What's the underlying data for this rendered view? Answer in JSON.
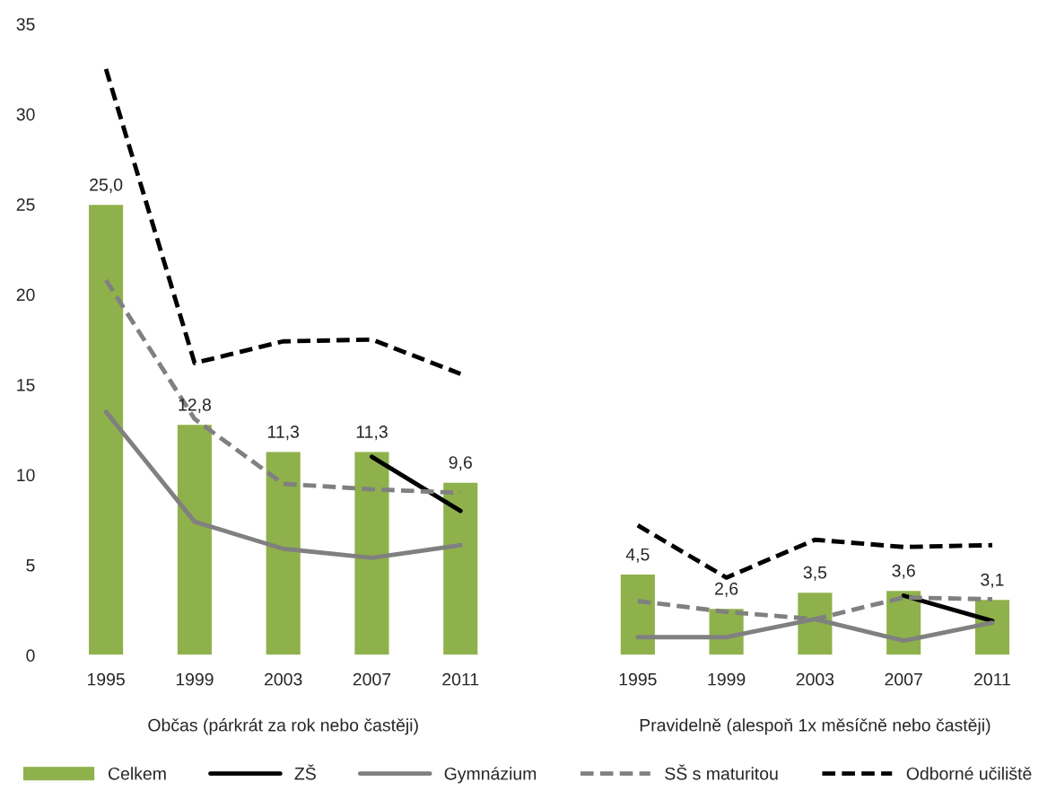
{
  "chart_data": {
    "type": "bar",
    "categories": [
      "1995",
      "1999",
      "2003",
      "2007",
      "2011",
      null,
      "1995",
      "1999",
      "2003",
      "2007",
      "2011"
    ],
    "series": [
      {
        "name": "Celkem",
        "color": "#8fb14b",
        "values": [
          25.0,
          12.8,
          11.3,
          11.3,
          9.6,
          null,
          4.5,
          2.6,
          3.5,
          3.6,
          3.1
        ],
        "value_labels": [
          "25,0",
          "12,8",
          "11,3",
          "11,3",
          "9,6",
          null,
          "4,5",
          "2,6",
          "3,5",
          "3,6",
          "3,1"
        ]
      },
      {
        "name": "ZŠ",
        "type": "line",
        "color": "#000000",
        "line_style": "solid",
        "values": [
          null,
          null,
          null,
          11.0,
          8.0,
          null,
          null,
          null,
          null,
          3.3,
          1.9
        ]
      },
      {
        "name": "Gymnázium",
        "type": "line",
        "color": "#808080",
        "line_style": "solid",
        "values": [
          13.5,
          7.4,
          5.9,
          5.4,
          6.1,
          null,
          1.0,
          1.0,
          2.0,
          0.8,
          1.8
        ]
      },
      {
        "name": "SŠ s maturitou",
        "type": "line",
        "color": "#808080",
        "line_style": "dashed",
        "values": [
          20.8,
          13.1,
          9.5,
          9.2,
          9.0,
          null,
          3.0,
          2.4,
          2.0,
          3.2,
          3.1
        ]
      },
      {
        "name": "Odborné učiliště",
        "type": "line",
        "color": "#000000",
        "line_style": "dashed",
        "values": [
          32.5,
          16.2,
          17.4,
          17.5,
          15.6,
          null,
          7.2,
          4.3,
          6.4,
          6.0,
          6.1
        ]
      }
    ],
    "ylim": [
      0,
      35
    ],
    "yticks": [
      0,
      5,
      10,
      15,
      20,
      25,
      30,
      35
    ],
    "annotations": [
      "Občas (párkrát za rok nebo častěji)",
      "Pravidelně (alespoň 1x měsíčně nebo častěji)"
    ],
    "grid": false,
    "legend": "bottom"
  }
}
